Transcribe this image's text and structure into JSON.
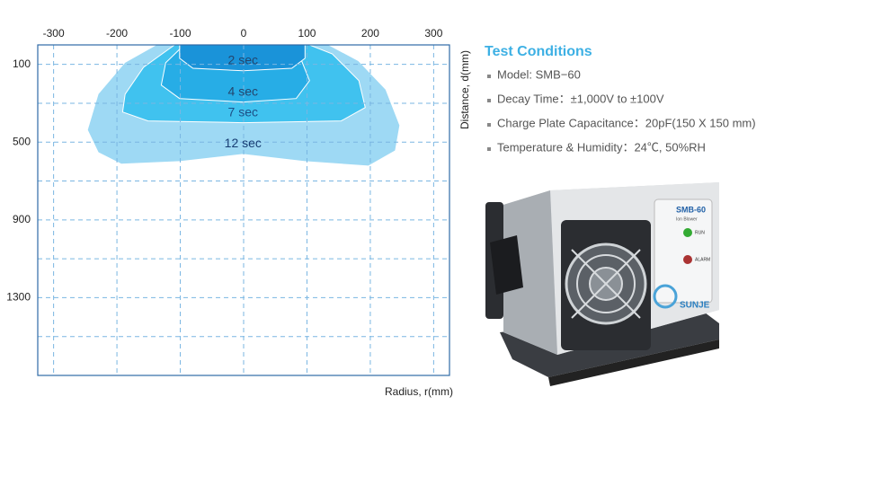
{
  "chart_data": {
    "type": "contour",
    "x_label": "Radius, r(mm)",
    "y_label": "Distance, d(mm)",
    "xlim": [
      -325,
      325
    ],
    "ylim": [
      0,
      1700
    ],
    "xticks": [
      -300,
      -200,
      -100,
      0,
      100,
      200,
      300
    ],
    "yticks": [
      100,
      500,
      900,
      1300
    ],
    "yticks_minor": [
      300,
      700,
      1100,
      1500
    ],
    "grid": true,
    "y_inverted": true,
    "x_axis_position": "top",
    "series": [
      {
        "name": "2 sec",
        "color": "#1a93d9",
        "label_color": "#24466e",
        "x": [
          -101,
          -101,
          -80,
          -1,
          76,
          97,
          97
        ],
        "values": [
          0,
          69,
          120,
          133,
          120,
          69,
          0
        ]
      },
      {
        "name": "4 sec",
        "color": "#27ade6",
        "label_color": "#24466e",
        "x": [
          -94,
          -123,
          -130,
          -101,
          -1,
          83,
          104,
          90,
          69
        ],
        "values": [
          0,
          92,
          207,
          276,
          294,
          276,
          184,
          69,
          0
        ]
      },
      {
        "name": "7 sec",
        "color": "#40c2ef",
        "label_color": "#1d4f86",
        "x": [
          -109,
          -158,
          -187,
          -191,
          -151,
          -1,
          154,
          192,
          182,
          140,
          104
        ],
        "values": [
          0,
          115,
          253,
          345,
          391,
          400,
          391,
          322,
          184,
          46,
          0
        ]
      },
      {
        "name": "12 sec",
        "color": "#9ed9f4",
        "label_color": "#173d73",
        "x": [
          -137,
          -187,
          -229,
          -246,
          -229,
          -193,
          -101,
          -1,
          97,
          197,
          239,
          246,
          224,
          181,
          133
        ],
        "values": [
          0,
          92,
          253,
          437,
          552,
          611,
          598,
          561,
          598,
          621,
          543,
          414,
          230,
          83,
          0
        ]
      }
    ]
  },
  "test_conditions": {
    "title": "Test Conditions",
    "items": [
      "Model: SMB−60",
      "Decay Time：±1,000V to ±100V",
      "Charge Plate Capacitance：20pF(150 X 150 mm)",
      "Temperature & Humidity：24℃, 50%RH"
    ]
  },
  "product_image": {
    "model": "SMB-60",
    "subtitle": "Ion Blower",
    "run": "RUN",
    "alarm": "ALARM",
    "brand": "SUNJE"
  }
}
